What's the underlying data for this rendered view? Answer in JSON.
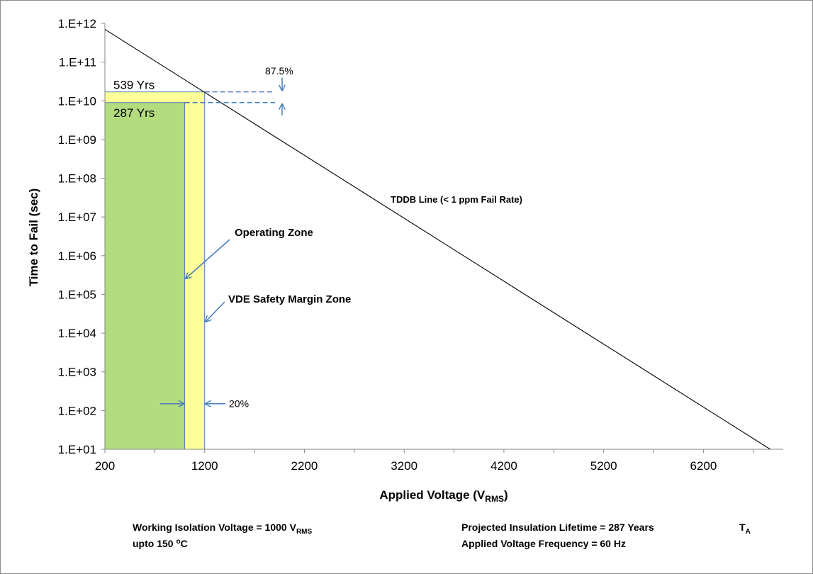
{
  "chart_data": {
    "type": "line",
    "xlabel": "Applied Voltage (V",
    "xlabel_sub": "RMS",
    "xlabel_end": ")",
    "ylabel": "Time to Fail (sec)",
    "y_scale": "log",
    "xlim": [
      200,
      7000
    ],
    "ylim": [
      10,
      1000000000000
    ],
    "x_ticks": [
      200,
      1200,
      2200,
      3200,
      4200,
      5200,
      6200
    ],
    "x_tick_labels": [
      "200",
      "1200",
      "2200",
      "3200",
      "4200",
      "5200",
      "6200"
    ],
    "y_ticks": [
      10,
      100,
      1000,
      10000,
      100000,
      1000000,
      10000000,
      100000000,
      1000000000,
      10000000000,
      100000000000,
      1000000000000
    ],
    "y_tick_labels": [
      "1.E+01",
      "1.E+02",
      "1.E+03",
      "1.E+04",
      "1.E+05",
      "1.E+06",
      "1.E+07",
      "1.E+08",
      "1.E+09",
      "1.E+10",
      "1.E+11",
      "1.E+12"
    ],
    "line": {
      "name": "TDDB Line (< 1 ppm Fail Rate)",
      "x": [
        200,
        6870
      ],
      "y": [
        700000000000,
        10
      ],
      "color": "#000000"
    },
    "zones": [
      {
        "name": "VDE Safety Margin Zone",
        "label": "539 Yrs",
        "x": [
          200,
          1200
        ],
        "y_top": 17000000000,
        "color": "#ffff99"
      },
      {
        "name": "Operating Zone",
        "label": "287 Yrs",
        "x": [
          200,
          1000
        ],
        "y_top": 9000000000,
        "color": "#b2dc7e"
      }
    ],
    "annotations": {
      "operating_zone": "Operating  Zone",
      "vde_zone": "VDE Safety Margin Zone",
      "tddb": "TDDB Line (< 1 ppm Fail Rate)",
      "margin_pct": "87.5%",
      "voltage_pct": "20%"
    },
    "arrow_color": "#4a7ebb",
    "grid": false,
    "legend": "none"
  },
  "footer": {
    "working_voltage": "Working Isolation Voltage = 1000 V",
    "working_voltage_sub": "RMS",
    "temp_prefix": "upto 150 ",
    "temp_sup": "o",
    "temp_suffix": "C",
    "lifetime": "Projected Insulation Lifetime = 287 Years",
    "frequency": "Applied Voltage Frequency = 60 Hz",
    "ta": "T",
    "ta_sub": "A"
  }
}
